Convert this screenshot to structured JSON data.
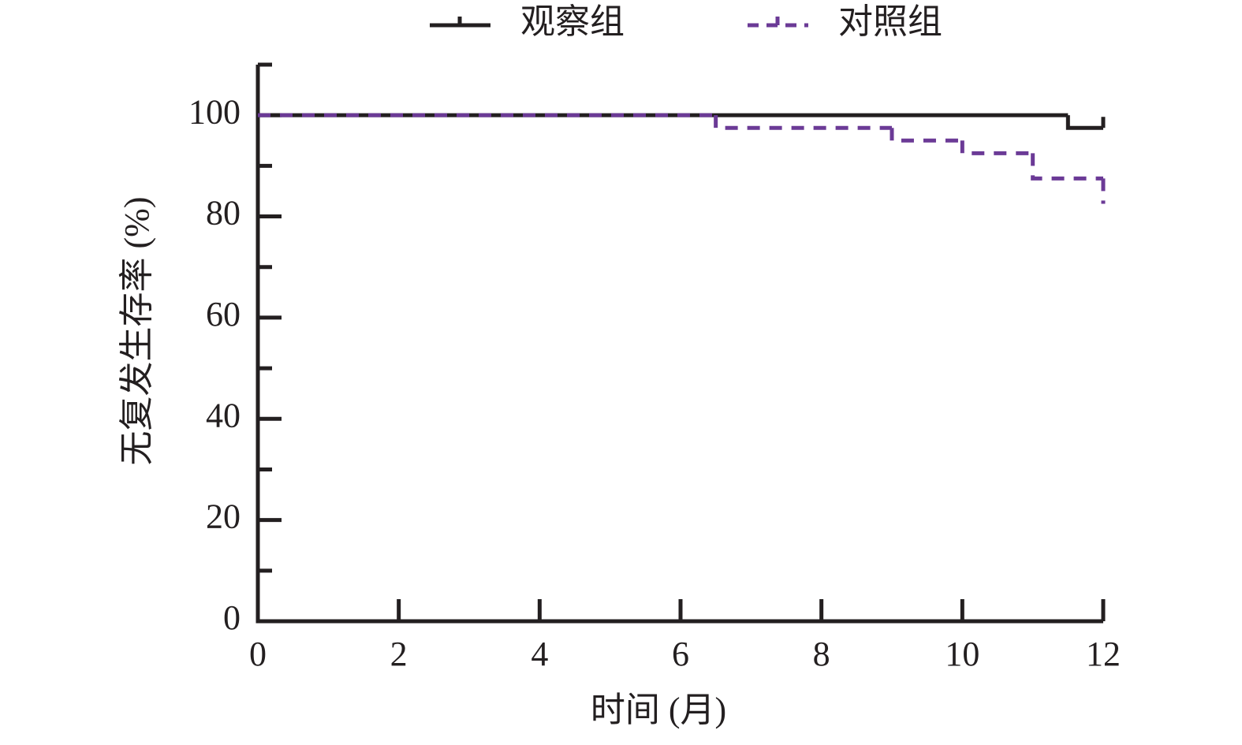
{
  "chart_data": {
    "type": "step",
    "xlabel": "时间 (月)",
    "ylabel": "无复发生存率 (%)",
    "xlim": [
      0,
      12
    ],
    "xticks": [
      0,
      2,
      4,
      6,
      8,
      10,
      12
    ],
    "ylim": [
      0,
      110
    ],
    "yticks": [
      0,
      20,
      40,
      60,
      80,
      100
    ],
    "yminorticks": [
      10,
      30,
      50,
      70,
      90,
      110
    ],
    "legend": "top",
    "series": [
      {
        "name": "观察组",
        "color": "#231f20",
        "dash": false,
        "x": [
          0,
          11.5,
          12
        ],
        "values": [
          100,
          97.5,
          97.5
        ]
      },
      {
        "name": "对照组",
        "color": "#6b3a96",
        "dash": true,
        "x": [
          0,
          6.5,
          9,
          10,
          11,
          12
        ],
        "values": [
          100,
          97.5,
          95,
          92.5,
          87.5,
          82.5
        ]
      }
    ]
  }
}
